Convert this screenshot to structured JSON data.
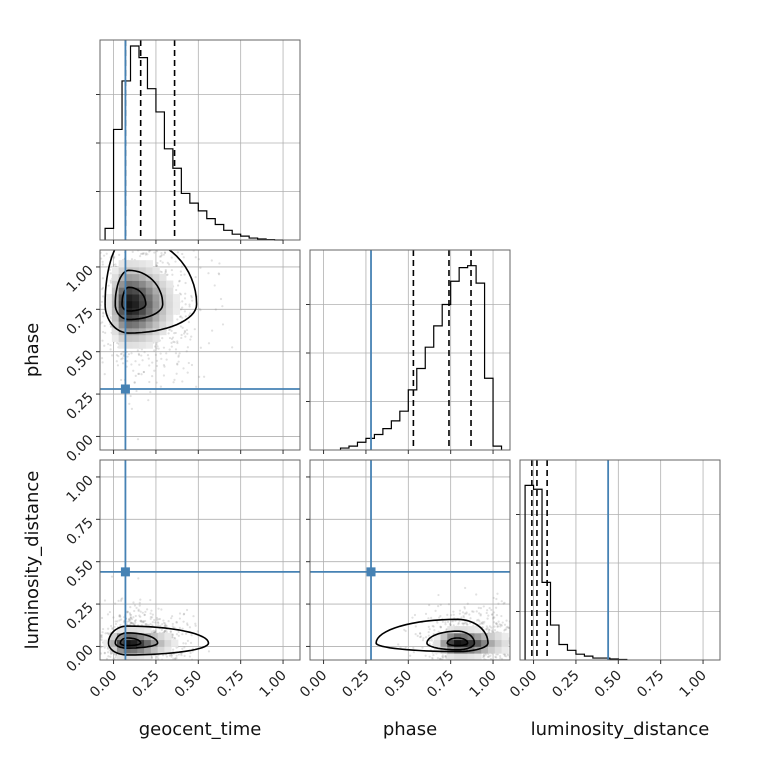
{
  "colors": {
    "truth": "#4682b4",
    "hist": "#000000",
    "quantile": "#000000",
    "grid": "#b0b0b0",
    "points": "#888888"
  },
  "chart_data": {
    "type": "corner",
    "parameters": [
      "geocent_time",
      "phase",
      "luminosity_distance"
    ],
    "axis_range": [
      -0.08,
      1.1
    ],
    "tick_values": [
      0.0,
      0.25,
      0.5,
      0.75,
      1.0
    ],
    "tick_labels": [
      "0.00",
      "0.25",
      "0.50",
      "0.75",
      "1.00"
    ],
    "truths": {
      "geocent_time": 0.07,
      "phase": 0.28,
      "luminosity_distance": 0.44
    },
    "quantiles": {
      "geocent_time": [
        0.07,
        0.16,
        0.36
      ],
      "phase": [
        0.53,
        0.74,
        0.87
      ],
      "luminosity_distance": [
        -0.01,
        0.02,
        0.08
      ]
    },
    "histograms": {
      "geocent_time": {
        "bin_edges": [
          -0.05,
          0.0,
          0.05,
          0.1,
          0.15,
          0.2,
          0.25,
          0.3,
          0.35,
          0.4,
          0.45,
          0.5,
          0.55,
          0.6,
          0.65,
          0.7,
          0.75,
          0.8,
          0.85,
          0.9,
          0.95,
          1.0
        ],
        "counts": [
          0.06,
          0.57,
          0.82,
          1.0,
          0.94,
          0.78,
          0.66,
          0.47,
          0.37,
          0.24,
          0.19,
          0.15,
          0.11,
          0.08,
          0.05,
          0.03,
          0.02,
          0.01,
          0.005,
          0.002,
          0.0
        ]
      },
      "phase": {
        "bin_edges": [
          0.1,
          0.15,
          0.2,
          0.25,
          0.3,
          0.35,
          0.4,
          0.45,
          0.5,
          0.55,
          0.6,
          0.65,
          0.7,
          0.75,
          0.8,
          0.85,
          0.9,
          0.95,
          1.0,
          1.05
        ],
        "counts": [
          0.01,
          0.02,
          0.04,
          0.06,
          0.08,
          0.11,
          0.15,
          0.2,
          0.31,
          0.42,
          0.53,
          0.64,
          0.75,
          0.87,
          0.94,
          0.95,
          0.86,
          0.37,
          0.02
        ]
      },
      "luminosity_distance": {
        "bin_edges": [
          -0.05,
          0.0,
          0.05,
          0.1,
          0.15,
          0.2,
          0.25,
          0.3,
          0.35,
          0.4,
          0.45,
          0.5,
          0.55
        ],
        "counts": [
          0.9,
          0.88,
          0.4,
          0.18,
          0.08,
          0.05,
          0.03,
          0.02,
          0.01,
          0.01,
          0.005,
          0.003
        ]
      }
    },
    "panels_2d": [
      {
        "x": "geocent_time",
        "y": "phase",
        "center": [
          0.09,
          0.78
        ],
        "spread": [
          0.09,
          0.12
        ],
        "contour_shapes": [
          [
            0.04,
            0.1,
            0.04,
            0.1
          ],
          [
            0.08,
            0.2,
            0.09,
            0.2
          ],
          [
            0.14,
            0.4,
            0.17,
            0.4
          ]
        ],
        "scatter_spread": [
          0.16,
          0.22
        ]
      },
      {
        "x": "geocent_time",
        "y": "luminosity_distance",
        "center": [
          0.08,
          0.02
        ],
        "spread": [
          0.09,
          0.04
        ],
        "contour_shapes": [
          [
            0.04,
            0.08,
            0.015,
            0.03
          ],
          [
            0.07,
            0.18,
            0.03,
            0.06
          ],
          [
            0.11,
            0.48,
            0.07,
            0.1
          ]
        ],
        "scatter_spread": [
          0.14,
          0.1
        ]
      },
      {
        "x": "phase",
        "y": "luminosity_distance",
        "center": [
          0.79,
          0.02
        ],
        "spread": [
          0.1,
          0.04
        ],
        "contour_shapes": [
          [
            0.06,
            0.06,
            0.015,
            0.03
          ],
          [
            0.18,
            0.1,
            0.04,
            0.07
          ],
          [
            0.48,
            0.18,
            0.05,
            0.14
          ]
        ],
        "scatter_spread": [
          0.2,
          0.1
        ]
      }
    ]
  }
}
